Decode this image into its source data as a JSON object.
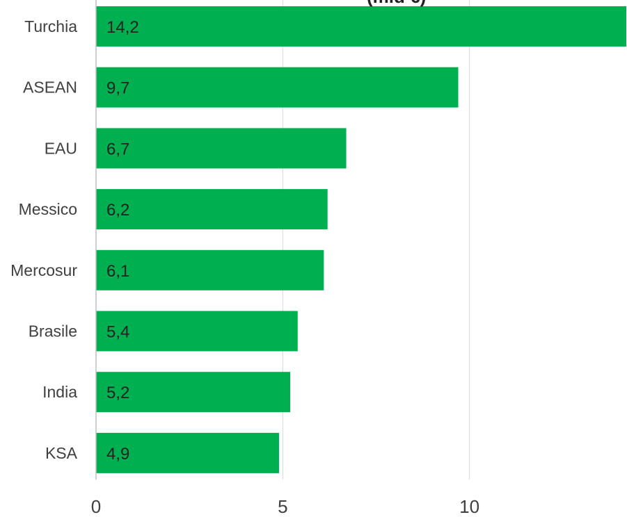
{
  "chart_data": {
    "type": "bar",
    "orientation": "horizontal",
    "title_fragment": "(mld €)",
    "categories": [
      "Turchia",
      "ASEAN",
      "EAU",
      "Messico",
      "Mercosur",
      "Brasile",
      "India",
      "KSA"
    ],
    "values": [
      14.2,
      9.7,
      6.7,
      6.2,
      6.1,
      5.4,
      5.2,
      4.9
    ],
    "value_labels": [
      "14,2",
      "9,7",
      "6,7",
      "6,2",
      "6,1",
      "5,4",
      "5,2",
      "4,9"
    ],
    "x_ticks": [
      0,
      5,
      10
    ],
    "xlim": [
      0,
      14.2
    ],
    "grid": true,
    "xlabel": "",
    "ylabel": ""
  },
  "colors": {
    "bar": "#00b050",
    "grid": "#d9d9d9",
    "axis": "#bfbfbf"
  }
}
